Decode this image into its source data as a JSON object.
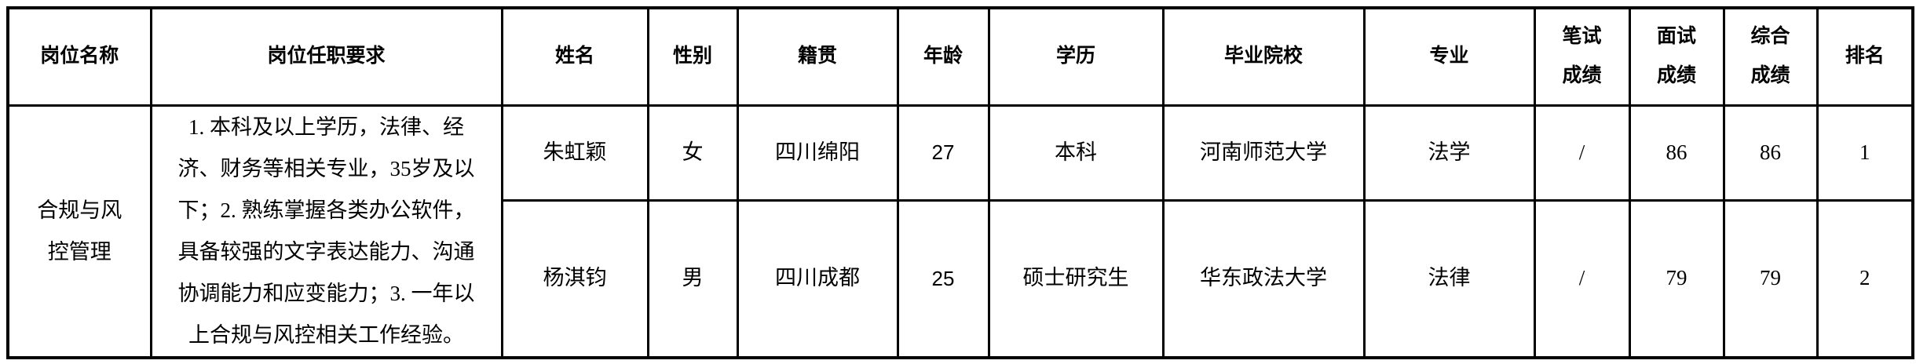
{
  "colors": {
    "border": "#000000",
    "text": "#000000",
    "background": "#ffffff"
  },
  "table": {
    "headers": {
      "position": "岗位名称",
      "requirements": "岗位任职要求",
      "name": "姓名",
      "gender": "性别",
      "hometown": "籍贯",
      "age": "年龄",
      "education": "学历",
      "school": "毕业院校",
      "major": "专业",
      "written_score": "笔试\n成绩",
      "interview_score": "面试\n成绩",
      "overall_score": "综合\n成绩",
      "rank": "排名"
    },
    "position_group": {
      "name": "合规与风\n控管理",
      "requirement_full": "1.本科及以上学历，法律、经济、财务等相关专业，35岁及以下；2.熟练掌握各类办公软件，具备较强的文字表达能力、沟通协调能力和应变能力；3.一年以上合规与风控相关工作经验。",
      "requirement_lines": [
        "1. 本科及以上学历，法律、经",
        "济、财务等相关专业，35岁及以",
        "下；2. 熟练掌握各类办公软件，",
        "具备较强的文字表达能力、沟通",
        "协调能力和应变能力；3. 一年以",
        "上合规与风控相关工作经验。"
      ]
    },
    "rows": [
      {
        "name": "朱虹颖",
        "gender": "女",
        "hometown": "四川绵阳",
        "age": "27",
        "education": "本科",
        "school": "河南师范大学",
        "major": "法学",
        "written_score": "/",
        "interview_score": "86",
        "overall_score": "86",
        "rank": "1"
      },
      {
        "name": "杨淇钧",
        "gender": "男",
        "hometown": "四川成都",
        "age": "25",
        "education": "硕士研究生",
        "school": "华东政法大学",
        "major": "法律",
        "written_score": "/",
        "interview_score": "79",
        "overall_score": "79",
        "rank": "2"
      }
    ]
  }
}
